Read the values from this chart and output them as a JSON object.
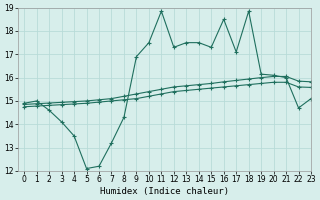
{
  "xlabel": "Humidex (Indice chaleur)",
  "x_values": [
    0,
    1,
    2,
    3,
    4,
    5,
    6,
    7,
    8,
    9,
    10,
    11,
    12,
    13,
    14,
    15,
    16,
    17,
    18,
    19,
    20,
    21,
    22,
    23
  ],
  "line1_y": [
    14.9,
    15.0,
    14.6,
    14.1,
    13.5,
    12.1,
    12.2,
    13.2,
    14.3,
    16.9,
    17.5,
    18.85,
    17.3,
    17.5,
    17.5,
    17.3,
    18.5,
    17.1,
    18.85,
    16.15,
    16.1,
    16.0,
    14.7,
    15.1
  ],
  "line2_y": [
    14.85,
    14.88,
    14.91,
    14.94,
    14.97,
    15.0,
    15.05,
    15.1,
    15.2,
    15.3,
    15.4,
    15.5,
    15.6,
    15.65,
    15.7,
    15.75,
    15.82,
    15.88,
    15.94,
    16.0,
    16.05,
    16.05,
    15.85,
    15.82
  ],
  "line3_y": [
    14.75,
    14.78,
    14.81,
    14.84,
    14.87,
    14.9,
    14.95,
    15.0,
    15.05,
    15.1,
    15.2,
    15.3,
    15.4,
    15.45,
    15.5,
    15.55,
    15.6,
    15.65,
    15.7,
    15.75,
    15.8,
    15.8,
    15.6,
    15.58
  ],
  "line_color": "#1f6f5e",
  "bg_color": "#d7eeeb",
  "grid_color": "#b8dbd8",
  "ylim": [
    12,
    19
  ],
  "xlim": [
    -0.5,
    23
  ],
  "yticks": [
    12,
    13,
    14,
    15,
    16,
    17,
    18,
    19
  ],
  "xticks": [
    0,
    1,
    2,
    3,
    4,
    5,
    6,
    7,
    8,
    9,
    10,
    11,
    12,
    13,
    14,
    15,
    16,
    17,
    18,
    19,
    20,
    21,
    22,
    23
  ],
  "xlabel_fontsize": 6.5,
  "tick_fontsize": 5.5
}
